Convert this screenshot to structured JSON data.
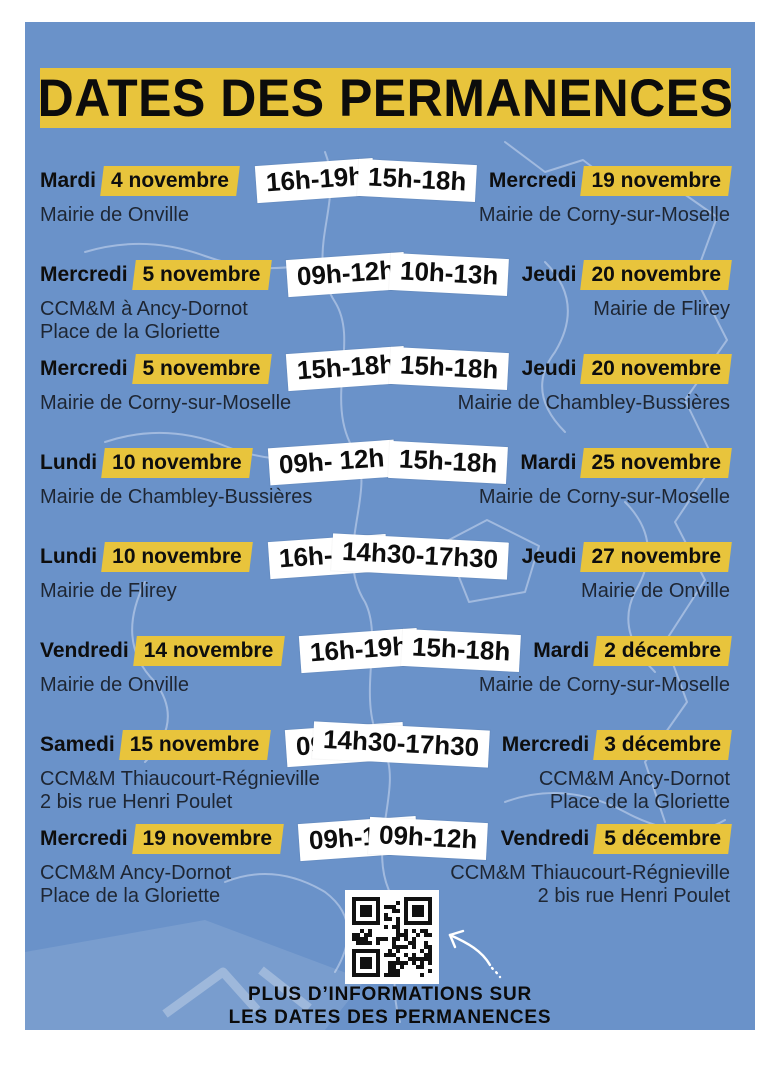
{
  "title": "DATES DES PERMANENCES",
  "colors": {
    "blue": "#6a92c9",
    "yellow": "#e8c43c",
    "chip": "#ffffff",
    "location": "#1e2633",
    "map_line": "#aebfe3"
  },
  "entries_left": [
    {
      "day": "Mardi",
      "date": "4 novembre",
      "time": "16h-19h",
      "location": [
        "Mairie de Onville"
      ]
    },
    {
      "day": "Mercredi",
      "date": "5 novembre",
      "time": "09h-12h",
      "location": [
        "CCM&M à Ancy-Dornot",
        "Place de la Gloriette"
      ]
    },
    {
      "day": "Mercredi",
      "date": "5 novembre",
      "time": "15h-18h",
      "location": [
        "Mairie de Corny-sur-Moselle"
      ]
    },
    {
      "day": "Lundi",
      "date": "10 novembre",
      "time": "09h- 12h",
      "location": [
        "Mairie de Chambley-Bussières"
      ]
    },
    {
      "day": "Lundi",
      "date": "10 novembre",
      "time": "16h-19h",
      "location": [
        "Mairie de Flirey"
      ]
    },
    {
      "day": "Vendredi",
      "date": "14 novembre",
      "time": "16h-19h",
      "location": [
        "Mairie de Onville"
      ]
    },
    {
      "day": "Samedi",
      "date": "15 novembre",
      "time": "09h-12h",
      "location": [
        "CCM&M Thiaucourt-Régnieville",
        "2 bis rue Henri Poulet"
      ]
    },
    {
      "day": "Mercredi",
      "date": "19 novembre",
      "time": "09h-12h",
      "location": [
        "CCM&M Ancy-Dornot",
        "Place de la Gloriette"
      ]
    }
  ],
  "entries_right": [
    {
      "day": "Mercredi",
      "date": "19 novembre",
      "time": "15h-18h",
      "location": [
        "Mairie de Corny-sur-Moselle"
      ]
    },
    {
      "day": "Jeudi",
      "date": "20 novembre",
      "time": "10h-13h",
      "location": [
        "Mairie de Flirey"
      ]
    },
    {
      "day": "Jeudi",
      "date": "20 novembre",
      "time": "15h-18h",
      "location": [
        "Mairie de Chambley-Bussières"
      ]
    },
    {
      "day": "Mardi",
      "date": "25 novembre",
      "time": "15h-18h",
      "location": [
        "Mairie de Corny-sur-Moselle"
      ]
    },
    {
      "day": "Jeudi",
      "date": "27 novembre",
      "time": "14h30-17h30",
      "location": [
        "Mairie de Onville"
      ]
    },
    {
      "day": "Mardi",
      "date": "2 décembre",
      "time": "15h-18h",
      "location": [
        "Mairie de Corny-sur-Moselle"
      ]
    },
    {
      "day": "Mercredi",
      "date": "3 décembre",
      "time": "14h30-17h30",
      "location": [
        "CCM&M Ancy-Dornot",
        "Place de la Gloriette"
      ]
    },
    {
      "day": "Vendredi",
      "date": "5 décembre",
      "time": "09h-12h",
      "location": [
        "CCM&M Thiaucourt-Régnieville",
        "2 bis rue Henri Poulet"
      ]
    }
  ],
  "footer": {
    "line1": "PLUS D’INFORMATIONS SUR",
    "line2": "LES DATES DES PERMANENCES"
  }
}
